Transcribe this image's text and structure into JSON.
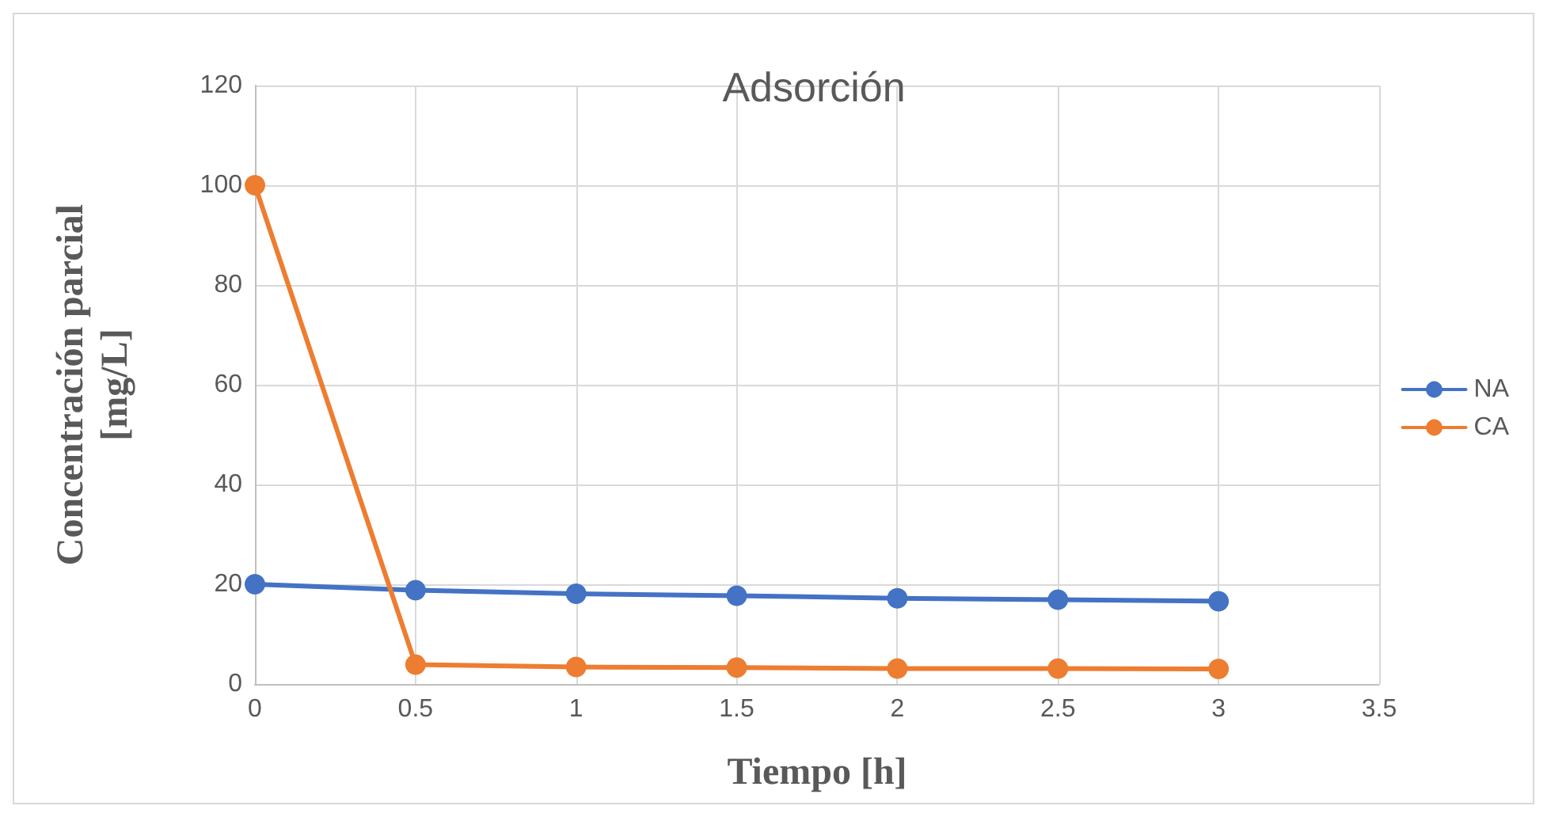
{
  "chart_data": {
    "type": "line",
    "title": "Adsorción",
    "xlabel": "Tiempo [h]",
    "ylabel": "Concentración parcial\n[mg/L]",
    "x": [
      0,
      0.5,
      1,
      1.5,
      2,
      2.5,
      3
    ],
    "series": [
      {
        "name": "NA",
        "color": "#4472c4",
        "values": [
          20,
          18.8,
          18.1,
          17.7,
          17.2,
          16.9,
          16.6
        ]
      },
      {
        "name": "CA",
        "color": "#ed7d31",
        "values": [
          100,
          3.9,
          3.4,
          3.3,
          3.1,
          3.1,
          3.0
        ]
      }
    ],
    "xlim": [
      0,
      3.5
    ],
    "xticks": [
      0,
      0.5,
      1,
      1.5,
      2,
      2.5,
      3,
      3.5
    ],
    "ylim": [
      0,
      120
    ],
    "yticks": [
      0,
      20,
      40,
      60,
      80,
      100,
      120
    ],
    "grid": true,
    "legend": "right",
    "marker": "circle",
    "line_style": "solid"
  }
}
